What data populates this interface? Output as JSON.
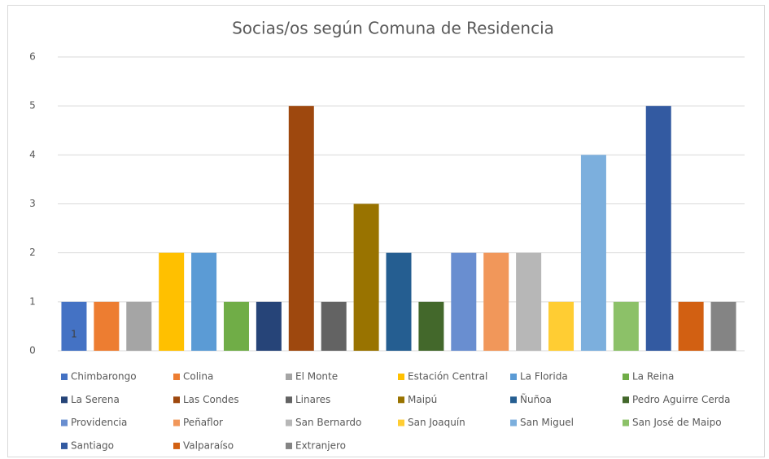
{
  "chart_data": {
    "type": "bar",
    "title": "Socias/os según Comuna de Residencia",
    "series": [
      {
        "name": "Chimbarongo",
        "color": "#4472c4",
        "values": [
          1
        ],
        "show_value_label": true
      },
      {
        "name": "Colina",
        "color": "#ed7d31",
        "values": [
          1
        ]
      },
      {
        "name": "El Monte",
        "color": "#a5a5a5",
        "values": [
          1
        ]
      },
      {
        "name": "Estación Central",
        "color": "#ffc000",
        "values": [
          2
        ]
      },
      {
        "name": "La Florida",
        "color": "#5b9bd5",
        "values": [
          2
        ]
      },
      {
        "name": "La Reina",
        "color": "#70ad47",
        "values": [
          1
        ]
      },
      {
        "name": "La Serena",
        "color": "#264478",
        "values": [
          1
        ]
      },
      {
        "name": "Las Condes",
        "color": "#9e480e",
        "values": [
          5
        ]
      },
      {
        "name": "Linares",
        "color": "#636363",
        "values": [
          1
        ]
      },
      {
        "name": "Maipú",
        "color": "#997300",
        "values": [
          3
        ]
      },
      {
        "name": "Ñuñoa",
        "color": "#255e91",
        "values": [
          2
        ]
      },
      {
        "name": "Pedro Aguirre Cerda",
        "color": "#43682b",
        "values": [
          1
        ]
      },
      {
        "name": "Providencia",
        "color": "#698ed0",
        "values": [
          2
        ]
      },
      {
        "name": "Peñaflor",
        "color": "#f1975a",
        "values": [
          2
        ]
      },
      {
        "name": "San Bernardo",
        "color": "#b7b7b7",
        "values": [
          2
        ]
      },
      {
        "name": "San Joaquín",
        "color": "#ffcd33",
        "values": [
          1
        ]
      },
      {
        "name": "San Miguel",
        "color": "#7cafdd",
        "values": [
          4
        ]
      },
      {
        "name": "San José de Maipo",
        "color": "#8cc168",
        "values": [
          1
        ]
      },
      {
        "name": "Santiago",
        "color": "#335aa1",
        "values": [
          5
        ]
      },
      {
        "name": "Valparaíso",
        "color": "#d26012",
        "values": [
          1
        ]
      },
      {
        "name": "Extranjero",
        "color": "#848484",
        "values": [
          1
        ]
      }
    ],
    "ylim": [
      0,
      6
    ],
    "yticks": [
      0,
      1,
      2,
      3,
      4,
      5,
      6
    ],
    "grid": true,
    "legend": "bottom"
  }
}
